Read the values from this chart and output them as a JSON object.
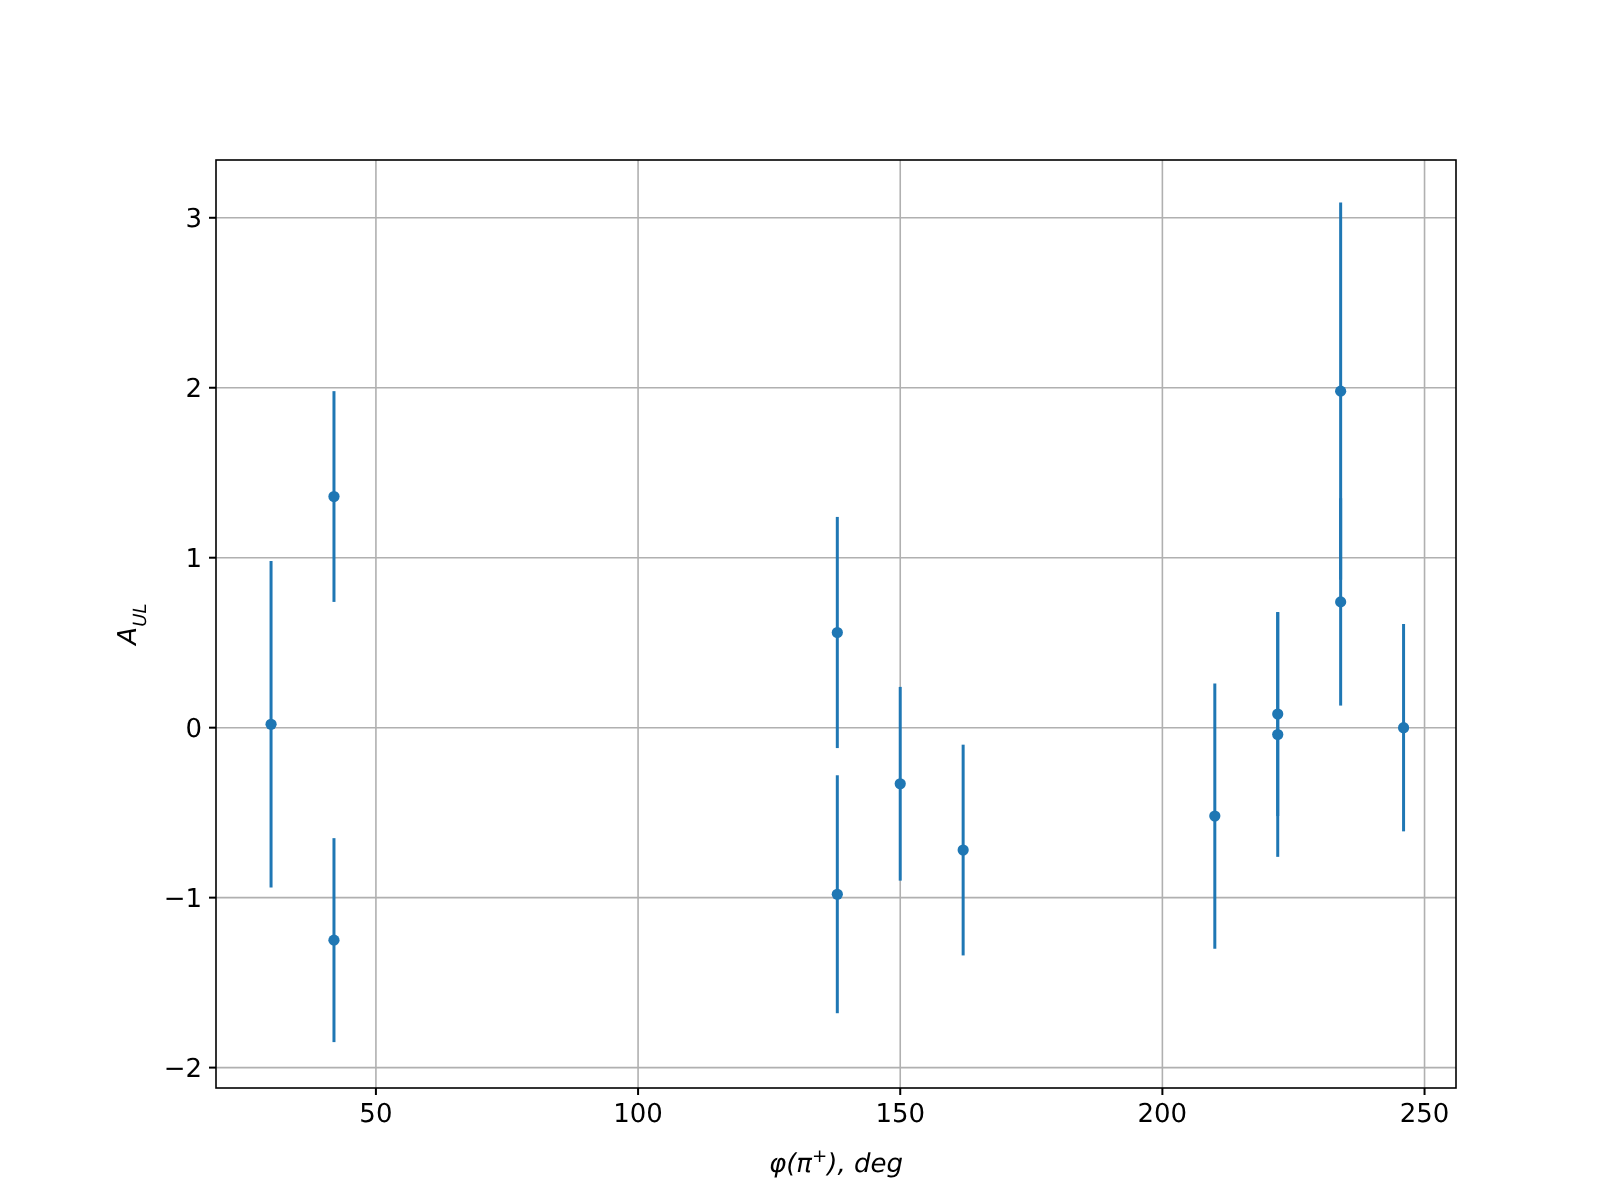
{
  "chart_data": {
    "type": "scatter",
    "xlabel": "φ(π$^{+}$), deg",
    "ylabel": "A$_{UL}$",
    "x": [
      30,
      42,
      42,
      138,
      138,
      150,
      162,
      210,
      222,
      222,
      234,
      234,
      246
    ],
    "series": [
      {
        "color": "#1f77b4",
        "values": [
          0.02,
          1.36,
          -1.25,
          0.56,
          -0.98,
          -0.33,
          -0.72,
          -0.52,
          0.08,
          -0.04,
          1.98,
          0.74,
          0.0
        ],
        "errors": [
          0.96,
          0.62,
          0.6,
          0.68,
          0.7,
          0.57,
          0.62,
          0.78,
          0.6,
          0.72,
          1.11,
          0.61,
          0.61
        ]
      }
    ],
    "xlim": [
      19.5,
      256
    ],
    "ylim": [
      -2.12,
      3.34
    ],
    "xticks": [
      50,
      100,
      150,
      200,
      250
    ],
    "yticks": [
      -2,
      -1,
      0,
      1,
      2,
      3
    ],
    "grid": true,
    "marker": "circle"
  }
}
